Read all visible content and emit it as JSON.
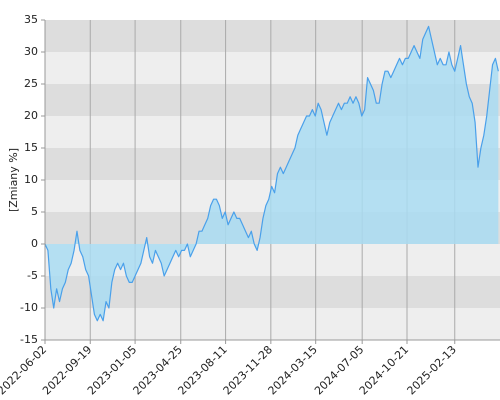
{
  "chart_data": {
    "type": "area",
    "y_label": "[Zmiany %]",
    "color": "#4aa0ea",
    "fill_color": "#a9dcf2",
    "grid": true,
    "ylim": [
      -15,
      35
    ],
    "yticks": [
      -15,
      -10,
      -5,
      0,
      5,
      10,
      15,
      20,
      25,
      30,
      35
    ],
    "xlim": [
      "2022-06-02",
      "2025-06-02"
    ],
    "xticks": [
      "2022-06-02",
      "2022-09-19",
      "2023-01-05",
      "2023-04-25",
      "2023-08-11",
      "2023-11-28",
      "2024-03-15",
      "2024-07-05",
      "2024-10-21",
      "2025-02-13"
    ],
    "x": [
      "2022-06-02",
      "2022-06-09",
      "2022-06-16",
      "2022-06-23",
      "2022-06-30",
      "2022-07-07",
      "2022-07-14",
      "2022-07-21",
      "2022-07-28",
      "2022-08-04",
      "2022-08-11",
      "2022-08-18",
      "2022-08-25",
      "2022-09-01",
      "2022-09-08",
      "2022-09-15",
      "2022-09-22",
      "2022-09-29",
      "2022-10-06",
      "2022-10-13",
      "2022-10-20",
      "2022-10-27",
      "2022-11-03",
      "2022-11-10",
      "2022-11-17",
      "2022-11-24",
      "2022-12-01",
      "2022-12-08",
      "2022-12-15",
      "2022-12-22",
      "2022-12-29",
      "2023-01-05",
      "2023-01-12",
      "2023-01-19",
      "2023-01-26",
      "2023-02-02",
      "2023-02-09",
      "2023-02-16",
      "2023-02-23",
      "2023-03-02",
      "2023-03-09",
      "2023-03-16",
      "2023-03-23",
      "2023-03-30",
      "2023-04-06",
      "2023-04-13",
      "2023-04-20",
      "2023-04-27",
      "2023-05-04",
      "2023-05-11",
      "2023-05-18",
      "2023-05-25",
      "2023-06-01",
      "2023-06-08",
      "2023-06-15",
      "2023-06-22",
      "2023-06-29",
      "2023-07-06",
      "2023-07-13",
      "2023-07-20",
      "2023-07-27",
      "2023-08-03",
      "2023-08-10",
      "2023-08-17",
      "2023-08-24",
      "2023-08-31",
      "2023-09-07",
      "2023-09-14",
      "2023-09-21",
      "2023-09-28",
      "2023-10-05",
      "2023-10-12",
      "2023-10-19",
      "2023-10-26",
      "2023-11-02",
      "2023-11-09",
      "2023-11-16",
      "2023-11-23",
      "2023-11-30",
      "2023-12-07",
      "2023-12-14",
      "2023-12-21",
      "2023-12-28",
      "2024-01-04",
      "2024-01-11",
      "2024-01-18",
      "2024-01-25",
      "2024-02-01",
      "2024-02-08",
      "2024-02-15",
      "2024-02-22",
      "2024-02-29",
      "2024-03-07",
      "2024-03-14",
      "2024-03-21",
      "2024-03-28",
      "2024-04-04",
      "2024-04-11",
      "2024-04-18",
      "2024-04-25",
      "2024-05-02",
      "2024-05-09",
      "2024-05-16",
      "2024-05-23",
      "2024-05-30",
      "2024-06-06",
      "2024-06-13",
      "2024-06-20",
      "2024-06-27",
      "2024-07-04",
      "2024-07-11",
      "2024-07-18",
      "2024-07-25",
      "2024-08-01",
      "2024-08-08",
      "2024-08-15",
      "2024-08-22",
      "2024-08-29",
      "2024-09-05",
      "2024-09-12",
      "2024-09-19",
      "2024-09-26",
      "2024-10-03",
      "2024-10-10",
      "2024-10-17",
      "2024-10-24",
      "2024-10-31",
      "2024-11-07",
      "2024-11-14",
      "2024-11-21",
      "2024-11-28",
      "2024-12-05",
      "2024-12-12",
      "2024-12-19",
      "2024-12-26",
      "2025-01-02",
      "2025-01-09",
      "2025-01-16",
      "2025-01-23",
      "2025-01-30",
      "2025-02-06",
      "2025-02-13",
      "2025-02-20",
      "2025-02-27",
      "2025-03-06",
      "2025-03-13",
      "2025-03-20",
      "2025-03-27",
      "2025-04-03",
      "2025-04-10",
      "2025-04-17",
      "2025-04-24",
      "2025-05-01",
      "2025-05-08",
      "2025-05-15",
      "2025-05-22",
      "2025-05-29"
    ],
    "values": [
      0,
      -1,
      -7,
      -10,
      -7,
      -9,
      -7,
      -6,
      -4,
      -3,
      -1,
      2,
      -1,
      -2,
      -4,
      -5,
      -8,
      -11,
      -12,
      -11,
      -12,
      -9,
      -10,
      -6,
      -4,
      -3,
      -4,
      -3,
      -5,
      -6,
      -6,
      -5,
      -4,
      -3,
      -1,
      1,
      -2,
      -3,
      -1,
      -2,
      -3,
      -5,
      -4,
      -3,
      -2,
      -1,
      -2,
      -1,
      -1,
      0,
      -2,
      -1,
      0,
      2,
      2,
      3,
      4,
      6,
      7,
      7,
      6,
      4,
      5,
      3,
      4,
      5,
      4,
      4,
      3,
      2,
      1,
      2,
      0,
      -1,
      1,
      4,
      6,
      7,
      9,
      8,
      11,
      12,
      11,
      12,
      13,
      14,
      15,
      17,
      18,
      19,
      20,
      20,
      21,
      20,
      22,
      21,
      19,
      17,
      19,
      20,
      21,
      22,
      21,
      22,
      22,
      23,
      22,
      23,
      22,
      20,
      21,
      26,
      25,
      24,
      22,
      22,
      25,
      27,
      27,
      26,
      27,
      28,
      29,
      28,
      29,
      29,
      30,
      31,
      30,
      29,
      32,
      33,
      34,
      32,
      30,
      28,
      29,
      28,
      28,
      30,
      28,
      27,
      29,
      31,
      28,
      25,
      23,
      22,
      19,
      12,
      15,
      17,
      20,
      24,
      28,
      29,
      27
    ]
  }
}
